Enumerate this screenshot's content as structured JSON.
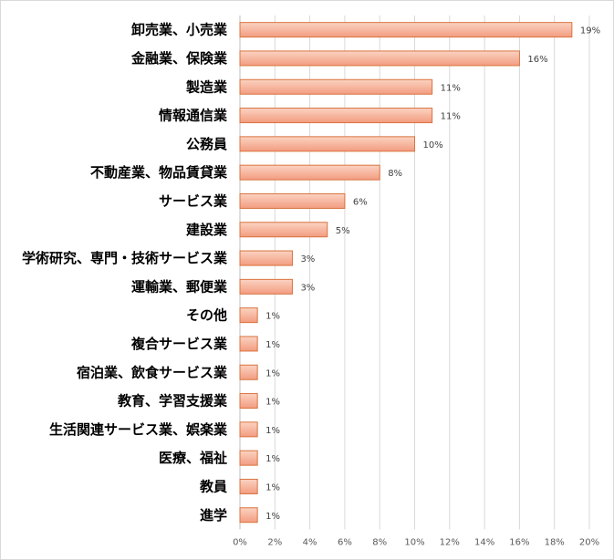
{
  "chart_data": {
    "type": "bar",
    "orientation": "horizontal",
    "title": "",
    "xlabel": "",
    "ylabel": "",
    "categories": [
      "卸売業、小売業",
      "金融業、保険業",
      "製造業",
      "情報通信業",
      "公務員",
      "不動産業、物品賃貸業",
      "サービス業",
      "建設業",
      "学術研究、専門・技術サービス業",
      "運輸業、郵便業",
      "その他",
      "複合サービス業",
      "宿泊業、飲食サービス業",
      "教育、学習支援業",
      "生活関連サービス業、娯楽業",
      "医療、福祉",
      "教員",
      "進学"
    ],
    "values": [
      19,
      16,
      11,
      11,
      10,
      8,
      6,
      5,
      3,
      3,
      1,
      1,
      1,
      1,
      1,
      1,
      1,
      1
    ],
    "value_labels": [
      "19%",
      "16%",
      "11%",
      "11%",
      "10%",
      "8%",
      "6%",
      "5%",
      "3%",
      "3%",
      "1%",
      "1%",
      "1%",
      "1%",
      "1%",
      "1%",
      "1%",
      "1%"
    ],
    "xlim": [
      0,
      20
    ],
    "xticks": [
      0,
      2,
      4,
      6,
      8,
      10,
      12,
      14,
      16,
      18,
      20
    ],
    "xtick_labels": [
      "0%",
      "2%",
      "4%",
      "6%",
      "8%",
      "10%",
      "12%",
      "14%",
      "16%",
      "18%",
      "20%"
    ],
    "grid": "vertical",
    "legend": "none",
    "colors": {
      "bar_fill_top": "#fbd3c2",
      "bar_fill_bottom": "#f29c80",
      "bar_stroke": "#d9733f",
      "grid": "#d9d9d9",
      "axis": "#bfbfbf"
    }
  }
}
